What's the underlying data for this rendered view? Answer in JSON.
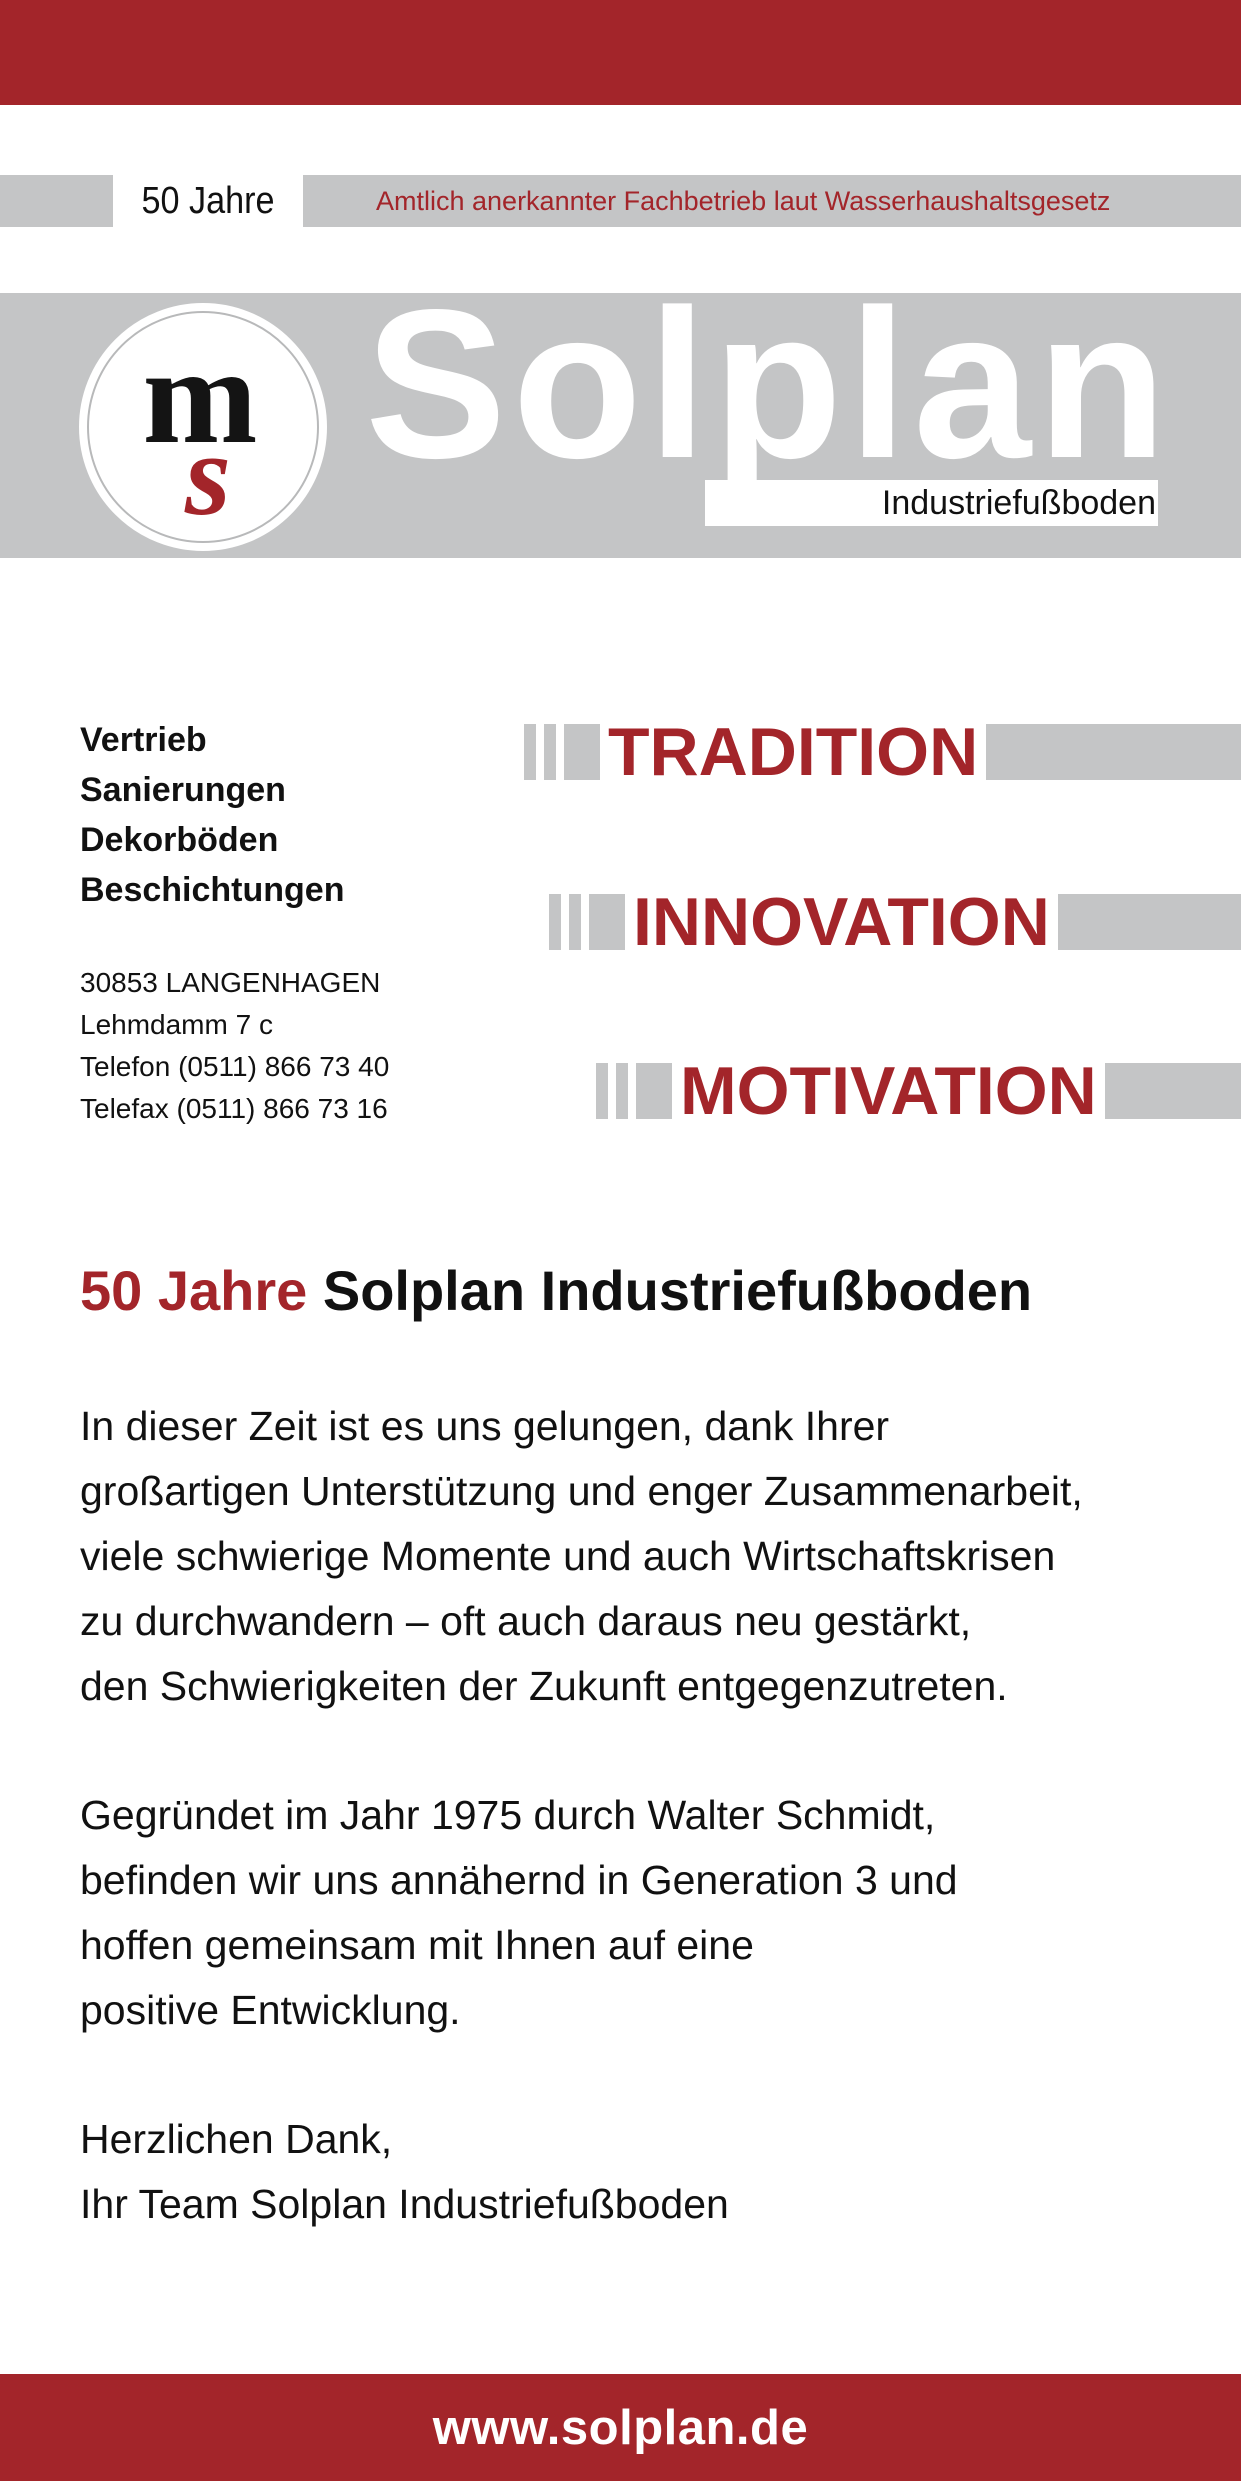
{
  "header": {
    "years": "50 Jahre",
    "certification": "Amtlich anerkannter Fachbetrieb laut Wasserhaushaltsgesetz"
  },
  "logo": {
    "monogram_top": "m",
    "monogram_bottom": "s",
    "brand": "Solplan",
    "subtitle": "Industriefußboden"
  },
  "services": [
    "Vertrieb",
    "Sanierungen",
    "Dekorböden",
    "Beschichtungen"
  ],
  "address": {
    "city": "30853 LANGENHAGEN",
    "street": "Lehmdamm 7 c",
    "phone": "Telefon (0511) 866 73 40",
    "fax": "Telefax (0511) 866 73 16"
  },
  "motto": [
    "TRADITION",
    "INNOVATION",
    "MOTIVATION"
  ],
  "headline": {
    "accent": "50 Jahre",
    "rest": "Solplan Industriefußboden"
  },
  "body": {
    "p1": "In dieser Zeit ist es uns gelungen, dank Ihrer\ngroßartigen Unterstützung und enger Zusammenarbeit,\nviele schwierige Momente und auch Wirtschaftskrisen\nzu durchwandern – oft auch daraus neu gestärkt,\nden Schwierigkeiten der Zukunft entgegenzutreten.",
    "p2": "Gegründet im Jahr 1975 durch Walter Schmidt,\nbefinden wir uns annähernd in Generation 3 und\nhoffen gemeinsam mit Ihnen auf eine\npositive Entwicklung.",
    "p3": "Herzlichen Dank,\nIhr Team Solplan Industriefußboden"
  },
  "footer": {
    "website": "www.solplan.de"
  },
  "colors": {
    "accent": "#a3252a",
    "gray": "#c4c5c6"
  }
}
